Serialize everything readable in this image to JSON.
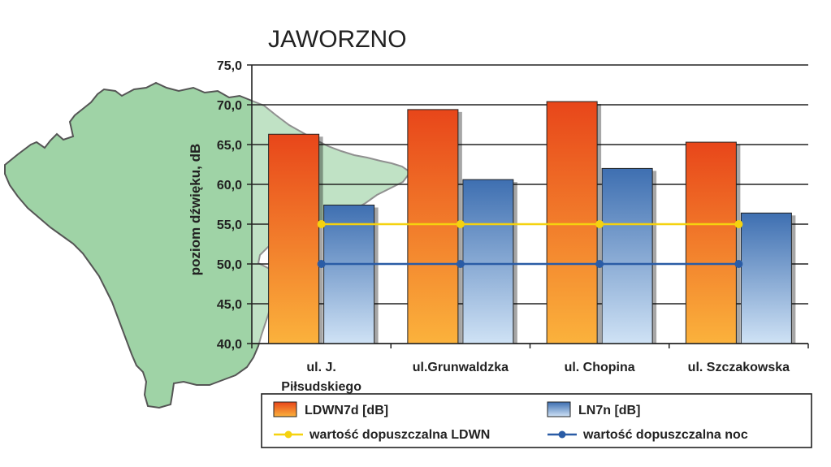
{
  "chart_data": {
    "type": "bar",
    "title": "JAWORZNO",
    "xlabel": "",
    "ylabel": "poziom dźwięku, dB",
    "ylim": [
      40,
      75
    ],
    "ytick_step": 5,
    "ytick_labels": [
      "40,0",
      "45,0",
      "50,0",
      "55,0",
      "60,0",
      "65,0",
      "70,0",
      "75,0"
    ],
    "categories": [
      [
        "ul. J.",
        "Piłsudskiego"
      ],
      [
        "ul.Grunwaldzka"
      ],
      [
        "ul. Chopina"
      ],
      [
        "ul. Szczakowska"
      ]
    ],
    "series": [
      {
        "name": "LDWN7d [dB]",
        "type": "bar",
        "values": [
          66.3,
          69.4,
          70.4,
          65.3
        ],
        "color_top": "#e8461a",
        "color_bottom": "#fbb23c"
      },
      {
        "name": "LN7n [dB]",
        "type": "bar",
        "values": [
          57.4,
          60.6,
          62.0,
          56.4
        ],
        "color_top": "#3e6fb1",
        "color_bottom": "#cfe2f5"
      },
      {
        "name": "wartość dopuszczalna LDWN",
        "type": "line",
        "values": [
          55,
          55,
          55,
          55
        ],
        "color": "#f5d20f"
      },
      {
        "name": "wartość dopuszczalna noc",
        "type": "line",
        "values": [
          50,
          50,
          50,
          50
        ],
        "color": "#2a5ca6"
      }
    ],
    "grid": true,
    "legend_position": "bottom",
    "map_fill": "#9fd3a6",
    "map_stroke": "#555555"
  }
}
